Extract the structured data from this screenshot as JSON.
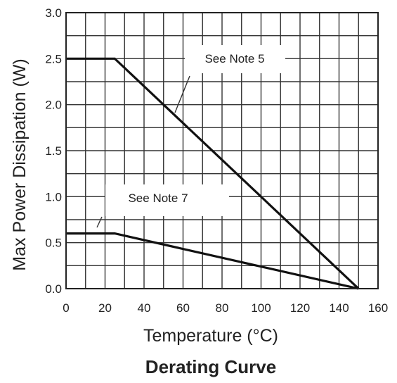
{
  "chart_data": {
    "type": "line",
    "title": "Derating Curve",
    "xlabel": "Temperature (°C)",
    "ylabel": "Max Power Dissipation (W)",
    "xlim": [
      0,
      160
    ],
    "ylim": [
      0,
      3.0
    ],
    "x_ticks": [
      "0",
      "20",
      "40",
      "60",
      "80",
      "100",
      "120",
      "140",
      "160"
    ],
    "y_ticks": [
      "0.0",
      "0.5",
      "1.0",
      "1.5",
      "2.0",
      "2.5",
      "3.0"
    ],
    "grid": true,
    "series": [
      {
        "x": [
          0,
          25,
          150
        ],
        "y": [
          2.5,
          2.5,
          0
        ]
      },
      {
        "x": [
          0,
          25,
          150
        ],
        "y": [
          0.6,
          0.6,
          0
        ]
      }
    ],
    "annotations": [
      {
        "text": "See Note 5",
        "point": [
          55,
          1.9
        ]
      },
      {
        "text": "See Note 7",
        "point": [
          15,
          0.75
        ]
      }
    ]
  }
}
